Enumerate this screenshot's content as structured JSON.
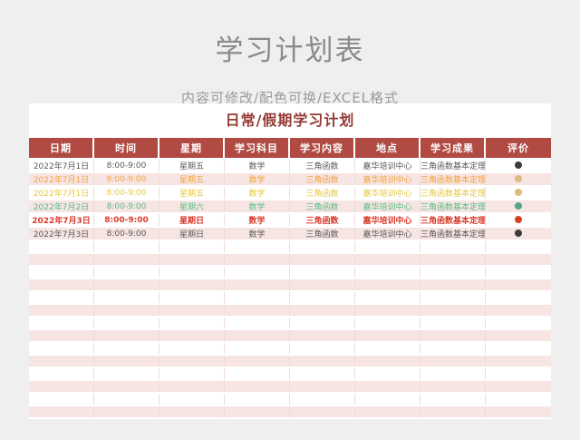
{
  "page": {
    "title": "学习计划表",
    "subtitle": "内容可修改/配色可换/EXCEL格式"
  },
  "table": {
    "title": "日常/假期学习计划",
    "columns": [
      {
        "key": "date",
        "label": "日期"
      },
      {
        "key": "time",
        "label": "时间"
      },
      {
        "key": "weekday",
        "label": "星期"
      },
      {
        "key": "subject",
        "label": "学习科目"
      },
      {
        "key": "content",
        "label": "学习内容"
      },
      {
        "key": "place",
        "label": "地点"
      },
      {
        "key": "result",
        "label": "学习成果"
      },
      {
        "key": "rating",
        "label": "评价"
      }
    ],
    "rows": [
      {
        "date": "2022年7月1日",
        "time": "8:00-9:00",
        "weekday": "星期五",
        "subject": "数学",
        "content": "三角函数",
        "place": "嘉华培训中心",
        "result": "三角函数基本定理",
        "text_color": "#595959",
        "bold": false,
        "dot_color": "#3b3b3b"
      },
      {
        "date": "2022年7月1日",
        "time": "8:00-9:00",
        "weekday": "星期五",
        "subject": "数学",
        "content": "三角函数",
        "place": "嘉华培训中心",
        "result": "三角函数基本定理",
        "text_color": "#f2a33c",
        "bold": false,
        "dot_color": "#dfba7e"
      },
      {
        "date": "2022年7月1日",
        "time": "8:00-9:00",
        "weekday": "星期五",
        "subject": "数学",
        "content": "三角函数",
        "place": "嘉华培训中心",
        "result": "三角函数基本定理",
        "text_color": "#e6c93e",
        "bold": false,
        "dot_color": "#dfba7e"
      },
      {
        "date": "2022年7月2日",
        "time": "8:00-9:00",
        "weekday": "星期六",
        "subject": "数学",
        "content": "三角函数",
        "place": "嘉华培训中心",
        "result": "三角函数基本定理",
        "text_color": "#55bd80",
        "bold": false,
        "dot_color": "#53a489"
      },
      {
        "date": "2022年7月3日",
        "time": "8:00-9:00",
        "weekday": "星期日",
        "subject": "数学",
        "content": "三角函数",
        "place": "嘉华培训中心",
        "result": "三角函数基本定理",
        "text_color": "#d93a2b",
        "bold": true,
        "dot_color": "#d2431f"
      },
      {
        "date": "2022年7月3日",
        "time": "8:00-9:00",
        "weekday": "星期日",
        "subject": "数学",
        "content": "三角函数",
        "place": "嘉华培训中心",
        "result": "三角函数基本定理",
        "text_color": "#595959",
        "bold": false,
        "dot_color": "#3b3b3b"
      }
    ],
    "empty_row_count": 14
  },
  "colors": {
    "page_background": "#efefef",
    "card_background": "#ffffff",
    "header_background": "#b04a42",
    "table_title_red": "#943a34",
    "stripe_pink": "#f7e5e4",
    "page_title_gray": "#8a8a8a",
    "subtitle_gray": "#9a9a9a"
  }
}
